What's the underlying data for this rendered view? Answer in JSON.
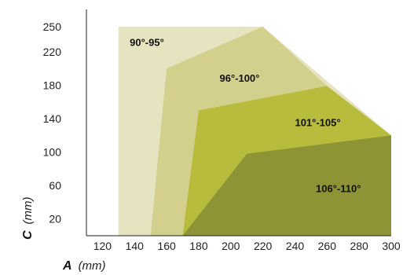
{
  "chart_data": {
    "type": "area",
    "title": "",
    "xlabel": {
      "name": "A",
      "unit": "(mm)"
    },
    "ylabel": {
      "name": "C",
      "unit": "(mm)"
    },
    "xlim": [
      110,
      300
    ],
    "ylim": [
      0,
      250
    ],
    "xticks": [
      120,
      140,
      160,
      180,
      200,
      220,
      240,
      260,
      280,
      300
    ],
    "yticks": [
      20,
      60,
      100,
      140,
      180,
      220,
      250
    ],
    "grid": false,
    "regions": [
      {
        "name": "90°-95°",
        "color": "#e6e3c0",
        "points": [
          [
            130,
            0
          ],
          [
            130,
            250
          ],
          [
            220,
            250
          ],
          [
            300,
            120
          ],
          [
            300,
            0
          ]
        ],
        "label_at": [
          137,
          227
        ]
      },
      {
        "name": "96°-100°",
        "color": "#d3d08d",
        "points": [
          [
            150,
            0
          ],
          [
            160,
            200
          ],
          [
            220,
            250
          ],
          [
            260,
            179
          ],
          [
            300,
            120
          ],
          [
            300,
            0
          ]
        ],
        "label_at": [
          193,
          184
        ]
      },
      {
        "name": "101°-105°",
        "color": "#b8bc3d",
        "points": [
          [
            170,
            0
          ],
          [
            180,
            150
          ],
          [
            260,
            179
          ],
          [
            300,
            120
          ],
          [
            300,
            0
          ]
        ],
        "label_at": [
          240,
          131
        ]
      },
      {
        "name": "106°-110°",
        "color": "#8e9436",
        "points": [
          [
            170,
            0
          ],
          [
            210,
            98
          ],
          [
            300,
            120
          ],
          [
            300,
            0
          ]
        ],
        "label_at": [
          253,
          52
        ]
      }
    ]
  }
}
